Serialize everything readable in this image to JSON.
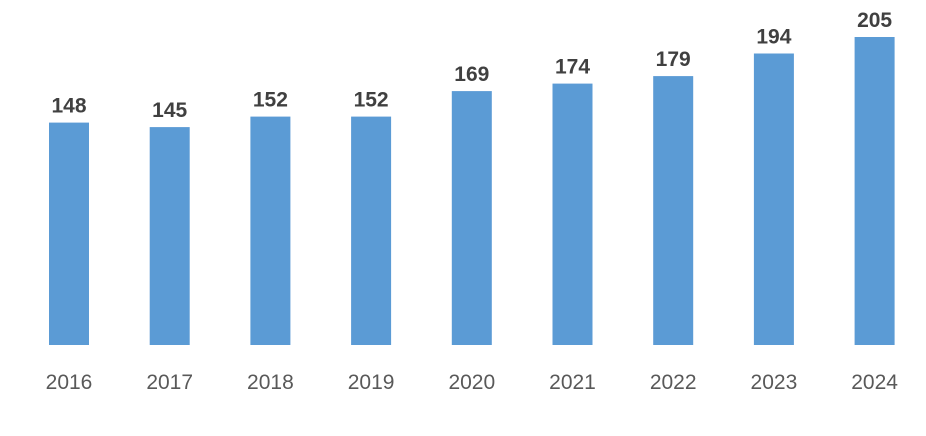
{
  "chart_data": {
    "type": "bar",
    "categories": [
      "2016",
      "2017",
      "2018",
      "2019",
      "2020",
      "2021",
      "2022",
      "2023",
      "2024"
    ],
    "values": [
      148,
      145,
      152,
      152,
      169,
      174,
      179,
      194,
      205
    ],
    "data_labels": [
      "148",
      "145",
      "152",
      "152",
      "169",
      "174",
      "179",
      "194",
      "205"
    ],
    "title": "",
    "xlabel": "",
    "ylabel": "",
    "ylim": [
      0,
      205
    ],
    "grid": false,
    "legend": "none",
    "bar_color": "#5B9BD5"
  }
}
